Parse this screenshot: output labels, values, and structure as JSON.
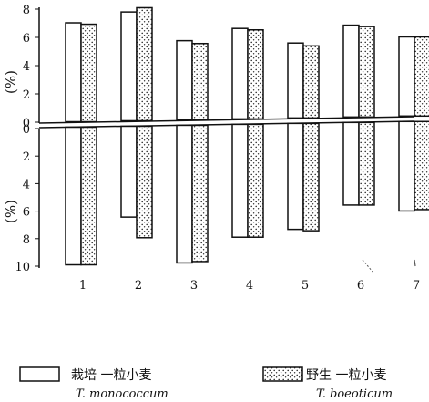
{
  "chart_data": {
    "type": "bar",
    "categories": [
      "1",
      "2",
      "3",
      "4",
      "5",
      "6",
      "7"
    ],
    "upper_panel": {
      "ylabel": "(%)",
      "ylim": [
        0,
        8
      ],
      "ticks": [
        "8",
        "6",
        "4",
        "2",
        "0"
      ],
      "series": [
        {
          "name_cn": "栽培 一粒小麦",
          "name_latin": "T. monococcum",
          "values": [
            7.0,
            7.7,
            5.6,
            6.4,
            5.3,
            6.5,
            5.6
          ]
        },
        {
          "name_cn": "野生 一粒小麦",
          "name_latin": "T. boeoticum",
          "values": [
            6.9,
            8.0,
            5.4,
            6.3,
            5.1,
            6.4,
            5.6
          ]
        }
      ]
    },
    "lower_panel": {
      "ylabel": "(%)",
      "ylim": [
        0,
        10
      ],
      "ticks": [
        "0",
        "2",
        "4",
        "6",
        "8",
        "10"
      ],
      "series": [
        {
          "name_cn": "栽培 一粒小麦",
          "name_latin": "T. monococcum",
          "values": [
            10.0,
            6.6,
            10.0,
            8.2,
            7.7,
            6.0,
            6.5
          ]
        },
        {
          "name_cn": "野生 一粒小麦",
          "name_latin": "T. boeoticum",
          "values": [
            10.0,
            8.1,
            9.9,
            8.2,
            7.8,
            6.0,
            6.4
          ]
        }
      ]
    },
    "legend": {
      "placement": "bottom",
      "items": [
        {
          "label_cn": "栽培 一粒小麦",
          "label_latin": "T. monococcum",
          "pattern": "plain"
        },
        {
          "label_cn": "野生 一粒小麦",
          "label_latin": "T. boeoticum",
          "pattern": "dotted"
        }
      ]
    },
    "colors": {
      "stroke": "#111111",
      "fill_plain": "#ffffff",
      "dot": "#222222"
    }
  }
}
